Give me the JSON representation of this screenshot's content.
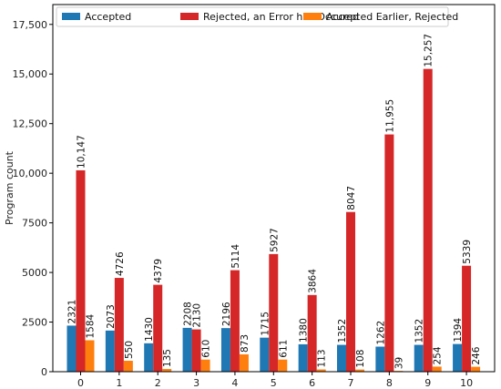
{
  "chart_data": {
    "type": "bar",
    "title": "",
    "xlabel": "",
    "ylabel": "Program count",
    "categories": [
      "0",
      "1",
      "2",
      "3",
      "4",
      "5",
      "6",
      "7",
      "8",
      "9",
      "10"
    ],
    "series": [
      {
        "name": "Accepted",
        "color": "#1f77b4",
        "values": [
          2321,
          2073,
          1430,
          2208,
          2196,
          1715,
          1380,
          1352,
          1262,
          1352,
          1394
        ],
        "labels": [
          "2321",
          "2073",
          "1430",
          "2208",
          "2196",
          "1715",
          "1380",
          "1352",
          "1262",
          "1352",
          "1394"
        ]
      },
      {
        "name": "Rejected, an Error has Occured",
        "color": "#d62728",
        "values": [
          10147,
          4726,
          4379,
          2130,
          5114,
          5927,
          3864,
          8047,
          11955,
          15257,
          5339
        ],
        "labels": [
          "10,147",
          "4726",
          "4379",
          "2130",
          "5114",
          "5927",
          "3864",
          "8047",
          "11,955",
          "15,257",
          "5339"
        ]
      },
      {
        "name": "Accepted Earlier, Rejected",
        "color": "#ff7f0e",
        "values": [
          1584,
          550,
          135,
          610,
          873,
          611,
          113,
          108,
          39,
          254,
          246
        ],
        "labels": [
          "1584",
          "550",
          "135",
          "610",
          "873",
          "611",
          "113",
          "108",
          "39",
          "254",
          "246"
        ]
      }
    ],
    "ylim": [
      0,
      18500
    ],
    "yticks": [
      0,
      2500,
      5000,
      7500,
      10000,
      12500,
      15000,
      17500
    ],
    "ytick_labels": [
      "0",
      "2500",
      "5000",
      "7500",
      "10,000",
      "12,500",
      "15,000",
      "17,500"
    ],
    "legend_position": "top",
    "grid": false
  }
}
